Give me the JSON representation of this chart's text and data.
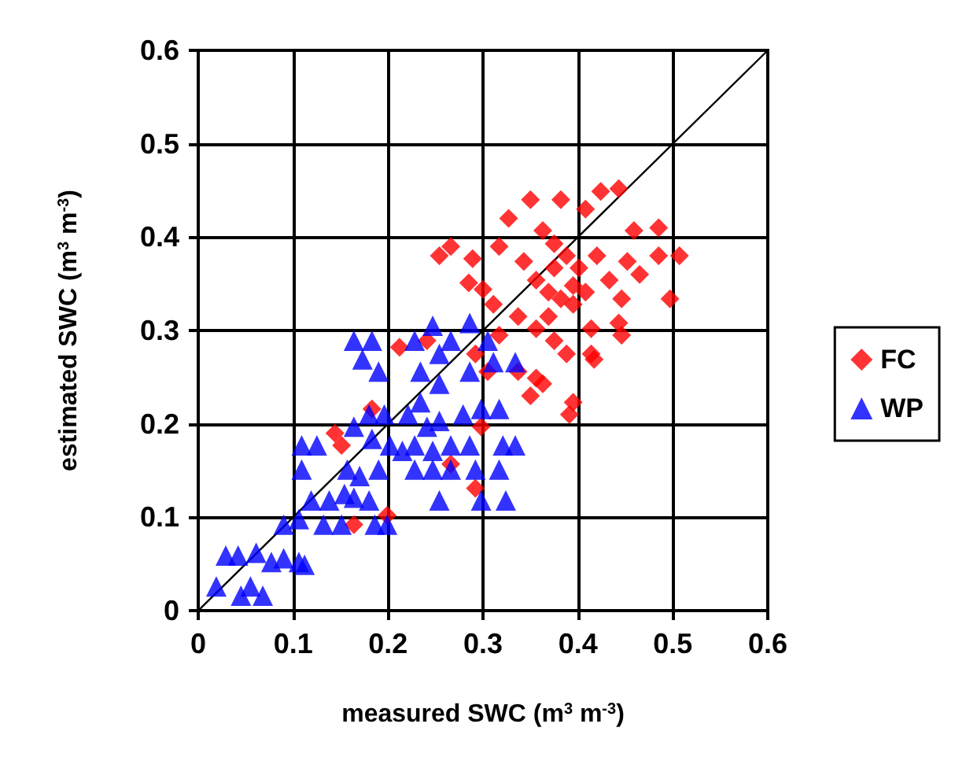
{
  "chart_data": {
    "type": "scatter",
    "xlabel": "measured SWC (m$^{3}$ m$^{-3}$)",
    "ylabel": "estimated SWC (m$^{3}$ m$^{-3}$)",
    "xlim": [
      0,
      0.6
    ],
    "ylim": [
      0,
      0.6
    ],
    "xticks": [
      0,
      0.1,
      0.2,
      0.3,
      0.4,
      0.5,
      0.6
    ],
    "yticks": [
      0,
      0.1,
      0.2,
      0.3,
      0.4,
      0.5,
      0.6
    ],
    "grid": true,
    "legend": "right",
    "series": [
      {
        "name": "FC",
        "color": "#ff0000",
        "marker": "diamond",
        "x": [
          0.254,
          0.266,
          0.289,
          0.285,
          0.3,
          0.311,
          0.317,
          0.327,
          0.35,
          0.382,
          0.424,
          0.443,
          0.408,
          0.363,
          0.375,
          0.388,
          0.401,
          0.395,
          0.382,
          0.369,
          0.356,
          0.375,
          0.388,
          0.414,
          0.395,
          0.391,
          0.356,
          0.337,
          0.35,
          0.363,
          0.42,
          0.433,
          0.446,
          0.452,
          0.459,
          0.485,
          0.465,
          0.485,
          0.507,
          0.497,
          0.443,
          0.446,
          0.414,
          0.417,
          0.317,
          0.337,
          0.343,
          0.356,
          0.375,
          0.395,
          0.408,
          0.369,
          0.212,
          0.144,
          0.151,
          0.164,
          0.199,
          0.292,
          0.298,
          0.266,
          0.292,
          0.305,
          0.241,
          0.183
        ],
        "values": [
          0.38,
          0.39,
          0.377,
          0.351,
          0.344,
          0.328,
          0.39,
          0.42,
          0.44,
          0.44,
          0.449,
          0.452,
          0.43,
          0.407,
          0.393,
          0.38,
          0.367,
          0.348,
          0.334,
          0.315,
          0.302,
          0.289,
          0.275,
          0.275,
          0.223,
          0.21,
          0.249,
          0.256,
          0.23,
          0.243,
          0.38,
          0.354,
          0.334,
          0.374,
          0.407,
          0.41,
          0.36,
          0.38,
          0.38,
          0.334,
          0.308,
          0.295,
          0.302,
          0.269,
          0.295,
          0.315,
          0.374,
          0.354,
          0.367,
          0.328,
          0.341,
          0.341,
          0.282,
          0.19,
          0.177,
          0.092,
          0.102,
          0.131,
          0.197,
          0.157,
          0.275,
          0.256,
          0.289,
          0.216
        ]
      },
      {
        "name": "WP",
        "color": "#0000ff",
        "marker": "triangle",
        "x": [
          0.019,
          0.029,
          0.042,
          0.045,
          0.055,
          0.068,
          0.061,
          0.077,
          0.09,
          0.106,
          0.112,
          0.09,
          0.106,
          0.119,
          0.109,
          0.109,
          0.125,
          0.132,
          0.151,
          0.138,
          0.154,
          0.164,
          0.18,
          0.186,
          0.199,
          0.157,
          0.17,
          0.19,
          0.164,
          0.18,
          0.196,
          0.202,
          0.183,
          0.164,
          0.183,
          0.173,
          0.19,
          0.228,
          0.247,
          0.266,
          0.286,
          0.305,
          0.254,
          0.234,
          0.254,
          0.286,
          0.311,
          0.334,
          0.234,
          0.221,
          0.254,
          0.279,
          0.298,
          0.317,
          0.228,
          0.247,
          0.266,
          0.286,
          0.321,
          0.334,
          0.228,
          0.247,
          0.266,
          0.292,
          0.317,
          0.254,
          0.298,
          0.324,
          0.215,
          0.241
        ],
        "values": [
          0.026,
          0.059,
          0.059,
          0.016,
          0.026,
          0.016,
          0.062,
          0.052,
          0.056,
          0.052,
          0.049,
          0.092,
          0.098,
          0.118,
          0.151,
          0.177,
          0.177,
          0.092,
          0.092,
          0.118,
          0.125,
          0.121,
          0.118,
          0.092,
          0.092,
          0.151,
          0.144,
          0.151,
          0.197,
          0.21,
          0.21,
          0.177,
          0.184,
          0.289,
          0.289,
          0.269,
          0.256,
          0.289,
          0.305,
          0.289,
          0.308,
          0.289,
          0.275,
          0.256,
          0.243,
          0.256,
          0.266,
          0.266,
          0.223,
          0.21,
          0.203,
          0.21,
          0.216,
          0.216,
          0.177,
          0.171,
          0.177,
          0.177,
          0.177,
          0.177,
          0.151,
          0.151,
          0.151,
          0.151,
          0.151,
          0.118,
          0.118,
          0.118,
          0.171,
          0.197
        ]
      },
      {
        "type": "line",
        "color": "#000000",
        "marker": "none",
        "x": [
          0,
          0.6
        ],
        "values": [
          0,
          0.6
        ]
      }
    ]
  }
}
